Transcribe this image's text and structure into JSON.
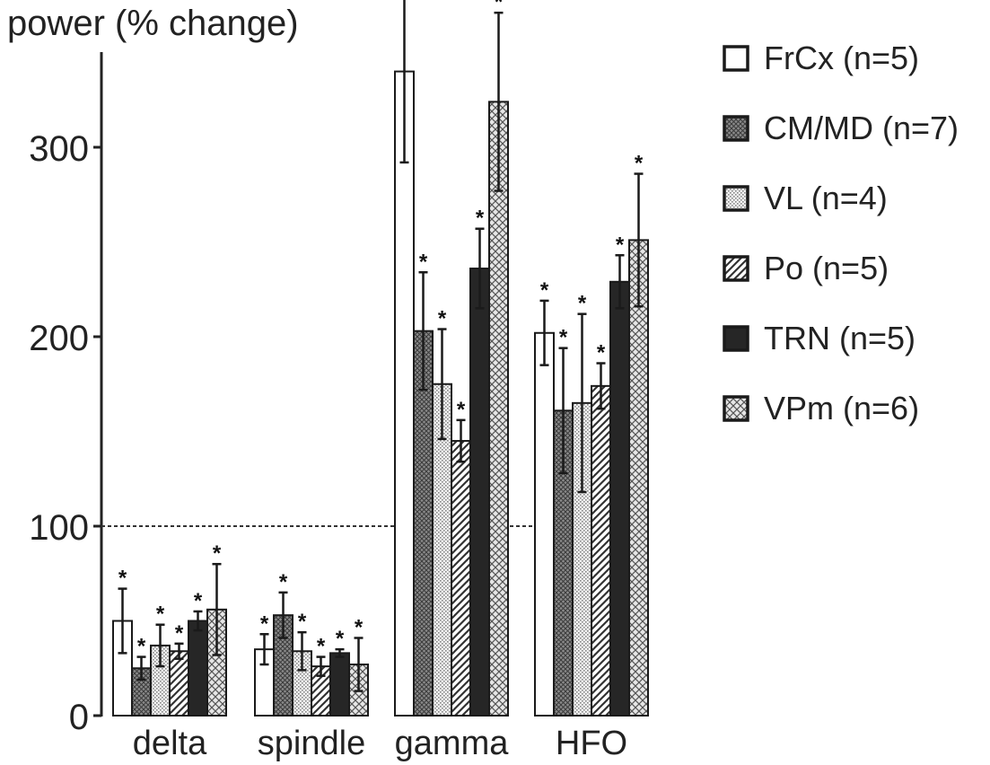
{
  "chart_data": {
    "type": "bar",
    "title": "",
    "ylabel": "power (% change)",
    "xlabel": "",
    "ylim": [
      0,
      350
    ],
    "yticks": [
      "0",
      "100",
      "200",
      "300"
    ],
    "reference_line": 100,
    "categories": [
      "delta",
      "spindle",
      "gamma",
      "HFO"
    ],
    "significance_marker": "*",
    "legend_placement": "right",
    "series": [
      {
        "name": "FrCx (n=5)",
        "pattern": "white",
        "values": [
          50,
          35,
          340,
          202
        ],
        "errors": [
          17,
          8,
          48,
          17
        ],
        "significant": [
          true,
          true,
          true,
          true
        ]
      },
      {
        "name": "CM/MD (n=7)",
        "pattern": "crosshatch-dark",
        "values": [
          25,
          53,
          203,
          161
        ],
        "errors": [
          6,
          12,
          31,
          33
        ],
        "significant": [
          true,
          true,
          true,
          true
        ]
      },
      {
        "name": "VL (n=4)",
        "pattern": "dots",
        "values": [
          37,
          34,
          175,
          165
        ],
        "errors": [
          11,
          10,
          29,
          47
        ],
        "significant": [
          true,
          true,
          true,
          true
        ]
      },
      {
        "name": "Po (n=5)",
        "pattern": "diagonal",
        "values": [
          34,
          26,
          145,
          174
        ],
        "errors": [
          4,
          5,
          11,
          12
        ],
        "significant": [
          true,
          true,
          true,
          true
        ]
      },
      {
        "name": "TRN (n=5)",
        "pattern": "black",
        "values": [
          50,
          33,
          236,
          229
        ],
        "errors": [
          5,
          2,
          21,
          14
        ],
        "significant": [
          true,
          true,
          true,
          true
        ]
      },
      {
        "name": "VPm (n=6)",
        "pattern": "crosshatch-light",
        "values": [
          56,
          27,
          324,
          251
        ],
        "errors": [
          24,
          14,
          47,
          35
        ],
        "significant": [
          true,
          true,
          true,
          true
        ]
      }
    ]
  }
}
